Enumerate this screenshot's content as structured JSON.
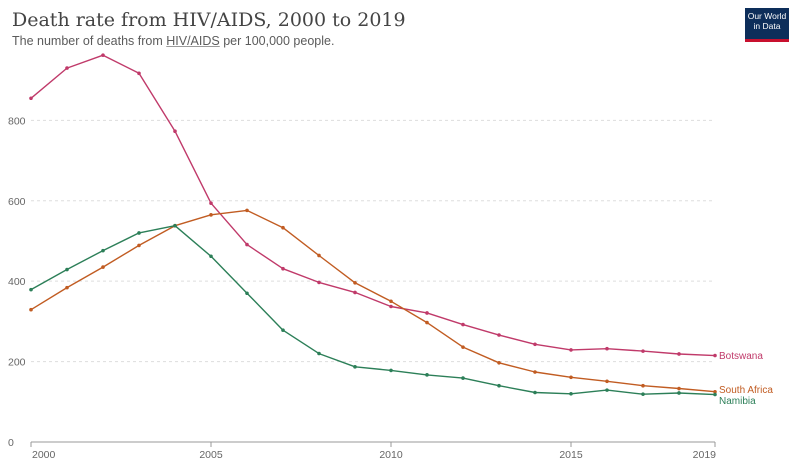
{
  "header": {
    "title": "Death rate from HIV/AIDS, 2000 to 2019",
    "subtitle_pre": "The number of deaths from ",
    "subtitle_link": "HIV/AIDS",
    "subtitle_post": " per 100,000 people.",
    "logo_line1": "Our World",
    "logo_line2": "in Data"
  },
  "chart_data": {
    "type": "line",
    "title": "Death rate from HIV/AIDS, 2000 to 2019",
    "subtitle": "The number of deaths from HIV/AIDS per 100,000 people.",
    "x": [
      2000,
      2001,
      2002,
      2003,
      2004,
      2005,
      2006,
      2007,
      2008,
      2009,
      2010,
      2011,
      2012,
      2013,
      2014,
      2015,
      2016,
      2017,
      2018,
      2019
    ],
    "x_ticks": [
      2000,
      2005,
      2010,
      2015,
      2019
    ],
    "y_ticks": [
      0,
      200,
      400,
      600,
      800
    ],
    "ylim": [
      0,
      980
    ],
    "grid": "horizontal dashed",
    "legend": "line-end labels",
    "series": [
      {
        "name": "Botswana",
        "color": "#c03a6a",
        "values": [
          855,
          930,
          962,
          917,
          773,
          594,
          491,
          431,
          397,
          372,
          337,
          321,
          292,
          266,
          243,
          229,
          232,
          226,
          219,
          215
        ]
      },
      {
        "name": "South Africa",
        "color": "#c15c22",
        "values": [
          329,
          384,
          435,
          489,
          538,
          565,
          576,
          533,
          464,
          396,
          350,
          297,
          236,
          197,
          174,
          161,
          151,
          140,
          133,
          125
        ]
      },
      {
        "name": "Namibia",
        "color": "#2c7f58",
        "values": [
          379,
          429,
          476,
          520,
          538,
          462,
          370,
          278,
          220,
          187,
          178,
          167,
          159,
          140,
          123,
          120,
          129,
          119,
          122,
          118
        ]
      }
    ]
  }
}
